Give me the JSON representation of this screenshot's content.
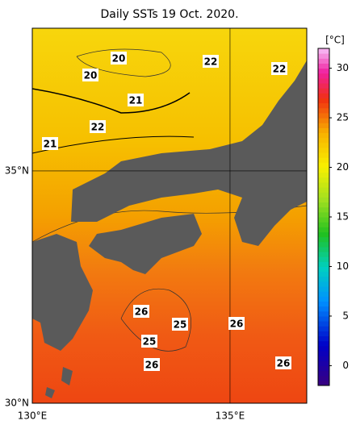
{
  "title": "Daily SSTs 19 Oct. 2020.",
  "map": {
    "xlim": [
      130,
      136.94
    ],
    "ylim": [
      30,
      38.07
    ],
    "xticks": [
      {
        "value": 130,
        "label": "130°E"
      },
      {
        "value": 135,
        "label": "135°E"
      }
    ],
    "yticks": [
      {
        "value": 30,
        "label": "30°N"
      },
      {
        "value": 35,
        "label": "35°N"
      }
    ],
    "contour_labels": [
      20,
      20,
      22,
      22,
      21,
      22,
      21,
      26,
      25,
      25,
      26,
      26,
      26
    ]
  },
  "colorbar": {
    "unit": "[°C]",
    "lim": [
      -2,
      32
    ],
    "ticks": [
      0,
      5,
      10,
      15,
      20,
      25,
      30
    ]
  }
}
